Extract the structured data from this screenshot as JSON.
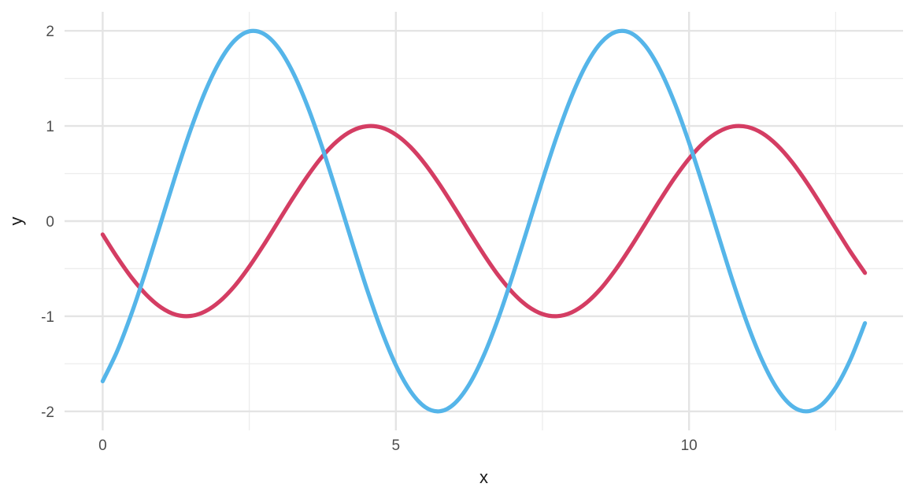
{
  "chart_data": {
    "type": "line",
    "title": "",
    "xlabel": "x",
    "ylabel": "y",
    "xlim": [
      -0.65,
      13.65
    ],
    "ylim": [
      -2.2,
      2.2
    ],
    "grid": "major-and-minor",
    "legend": "none",
    "background": "#FFFFFF",
    "x_axis": {
      "ticks": [
        0,
        5,
        10
      ],
      "tick_labels": [
        "0",
        "5",
        "10"
      ],
      "minor_ticks": [
        2.5,
        7.5,
        12.5
      ]
    },
    "y_axis": {
      "ticks": [
        -2,
        -1,
        0,
        1,
        2
      ],
      "tick_labels": [
        "-2",
        "-1",
        "0",
        "1",
        "2"
      ],
      "minor_ticks": [
        -1.5,
        -0.5,
        0.5,
        1.5
      ]
    },
    "x": [
      0,
      0.25,
      0.5,
      0.75,
      1,
      1.25,
      1.5,
      1.75,
      2,
      2.25,
      2.5,
      2.75,
      3,
      3.25,
      3.5,
      3.75,
      4,
      4.25,
      4.5,
      4.75,
      5,
      5.25,
      5.5,
      5.75,
      6,
      6.25,
      6.5,
      6.75,
      7,
      7.25,
      7.5,
      7.75,
      8,
      8.25,
      8.5,
      8.75,
      9,
      9.25,
      9.5,
      9.75,
      10,
      10.25,
      10.5,
      10.75,
      11,
      11.25,
      11.5,
      11.75,
      12,
      12.25,
      12.5,
      12.75,
      13
    ],
    "series": [
      {
        "id": "red-curve",
        "description": "sin(x - 3)",
        "color": "#D43D63",
        "values": [
          -0.141,
          -0.382,
          -0.599,
          -0.778,
          -0.909,
          -0.984,
          -0.997,
          -0.949,
          -0.841,
          -0.682,
          -0.479,
          -0.247,
          0,
          0.247,
          0.479,
          0.682,
          0.841,
          0.949,
          0.997,
          0.984,
          0.909,
          0.778,
          0.599,
          0.382,
          0.141,
          -0.108,
          -0.351,
          -0.572,
          -0.757,
          -0.895,
          -0.977,
          -0.999,
          -0.959,
          -0.859,
          -0.706,
          -0.508,
          -0.279,
          -0.033,
          0.215,
          0.45,
          0.657,
          0.824,
          0.938,
          0.995,
          0.989,
          0.923,
          0.799,
          0.625,
          0.412,
          0.174,
          -0.075,
          -0.32,
          -0.544
        ]
      },
      {
        "id": "blue-curve",
        "description": "2 sin(x - 1)",
        "color": "#55B5E9",
        "values": [
          -1.683,
          -1.363,
          -0.959,
          -0.495,
          0,
          0.495,
          0.959,
          1.363,
          1.683,
          1.898,
          1.995,
          1.968,
          1.819,
          1.556,
          1.197,
          0.763,
          0.282,
          -0.216,
          -0.702,
          -1.143,
          -1.514,
          -1.789,
          -1.955,
          -1.999,
          -1.918,
          -1.718,
          -1.411,
          -1.017,
          -0.559,
          -0.066,
          0.43,
          0.9,
          1.314,
          1.647,
          1.877,
          1.989,
          1.979,
          1.846,
          1.597,
          1.25,
          0.824,
          0.348,
          -0.15,
          -0.639,
          -1.088,
          -1.47,
          -1.76,
          -1.941,
          -2,
          -1.936,
          -1.751,
          -1.458,
          -1.073
        ]
      }
    ]
  },
  "style": {
    "grid_major_color": "#E4E4E4",
    "grid_minor_color": "#EDEDED",
    "tick_label_color": "#4D4D4D",
    "axis_title_color": "#1A1A1A"
  }
}
